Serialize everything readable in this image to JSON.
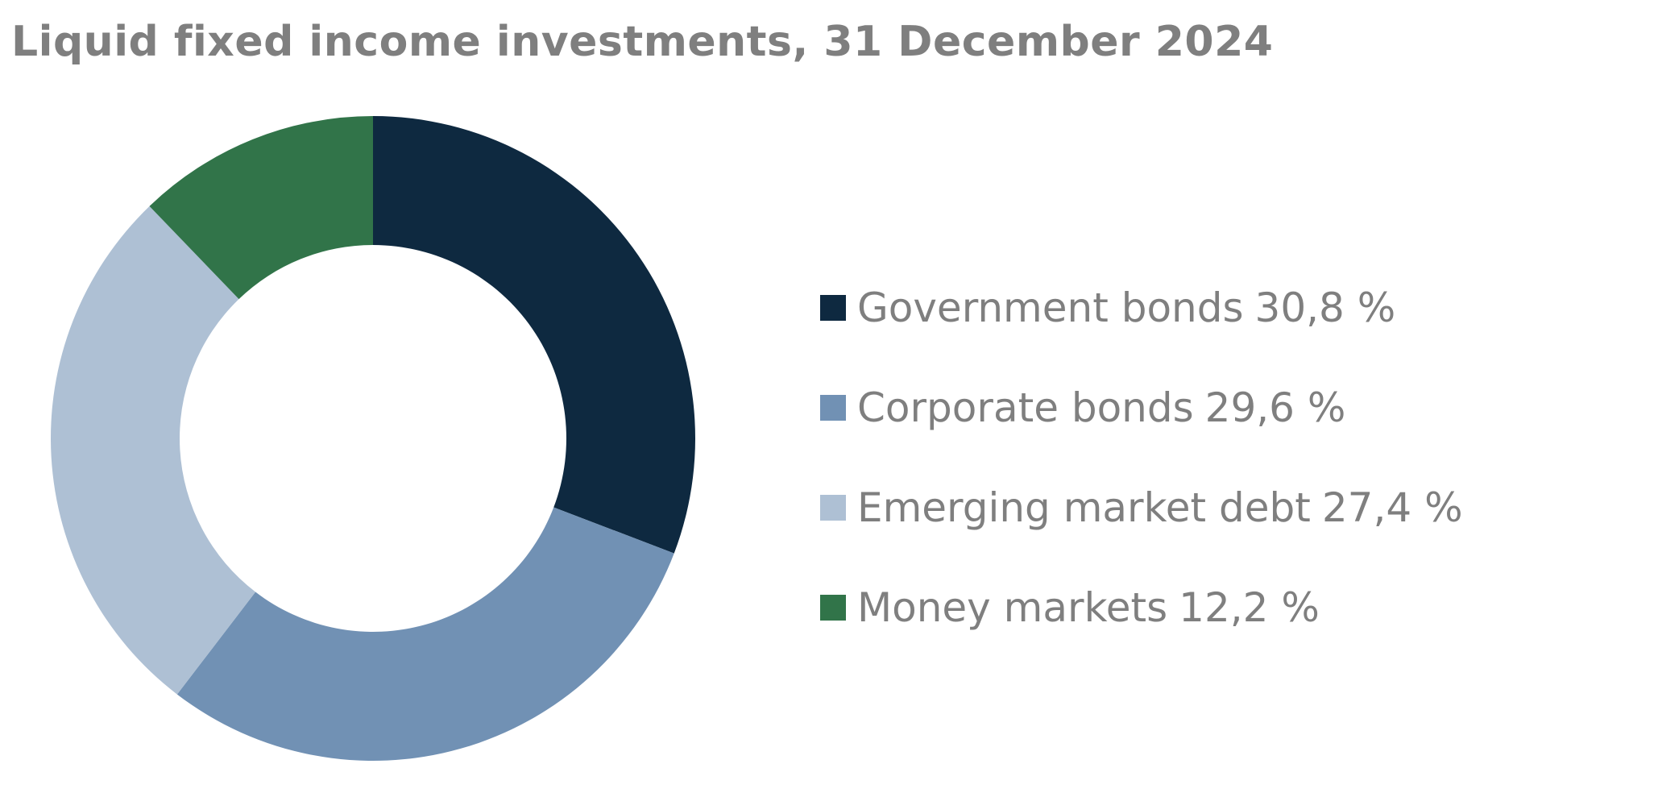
{
  "chart_data": {
    "type": "pie",
    "subtype": "donut",
    "title": "Liquid fixed income investments, 31 December 2024",
    "unit": "%",
    "legend_position": "right",
    "slices": [
      {
        "label": "Government bonds",
        "value": 30.8,
        "value_label": "30,8 %",
        "color": "#0e2940"
      },
      {
        "label": "Corporate bonds",
        "value": 29.6,
        "value_label": "29,6 %",
        "color": "#7191b4"
      },
      {
        "label": "Emerging market debt",
        "value": 27.4,
        "value_label": "27,4 %",
        "color": "#aec0d4"
      },
      {
        "label": "Money markets",
        "value": 12.2,
        "value_label": "12,2 %",
        "color": "#317449"
      }
    ]
  }
}
